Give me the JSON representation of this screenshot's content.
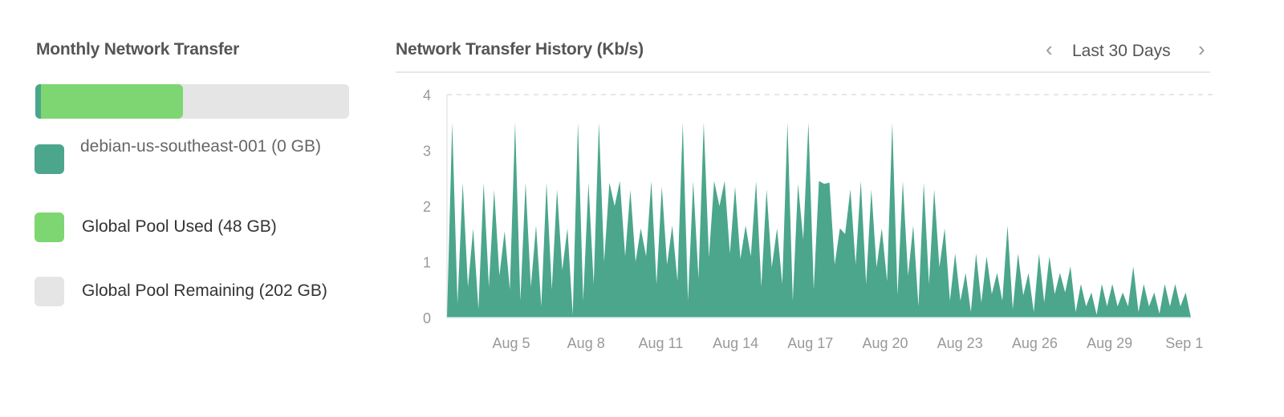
{
  "left": {
    "title": "Monthly Network Transfer",
    "bar_fill": {
      "debian": 0.018,
      "used": 0.47
    },
    "legend": [
      {
        "label": "debian-us-southeast-001 (0 GB)",
        "color": "#4ba68c"
      },
      {
        "label": "Global Pool Used (48 GB)",
        "color": "#7dd672"
      },
      {
        "label": "Global Pool Remaining (202 GB)",
        "color": "#e5e5e5"
      }
    ]
  },
  "right": {
    "title": "Network Transfer History (Kb/s)",
    "range_label": "Last 30 Days",
    "prev_icon": "chevron-left-icon",
    "next_icon": "chevron-right-icon"
  },
  "chart_data": {
    "type": "area",
    "title": "Network Transfer History (Kb/s)",
    "color": "#4ba68c",
    "ylim": [
      0,
      4
    ],
    "yticks": [
      0,
      1,
      2,
      3,
      4
    ],
    "xticks": [
      "Aug 5",
      "Aug 8",
      "Aug 11",
      "Aug 14",
      "Aug 17",
      "Aug 20",
      "Aug 23",
      "Aug 26",
      "Aug 29",
      "Sep 1"
    ],
    "grid": "dashed line at 4",
    "values": [
      0,
      3.5,
      0.25,
      2.42,
      0.55,
      1.6,
      0.15,
      2.42,
      0.55,
      2.29,
      0.75,
      1.55,
      0.5,
      3.5,
      0.3,
      2.42,
      0.55,
      1.65,
      0.2,
      2.42,
      0.5,
      2.3,
      0.85,
      1.6,
      0.05,
      3.5,
      0.3,
      2.42,
      0.6,
      3.5,
      1.0,
      2.42,
      2.0,
      2.45,
      1.1,
      2.29,
      1.0,
      1.6,
      1.1,
      2.45,
      0.6,
      2.35,
      0.95,
      1.65,
      0.65,
      3.5,
      0.3,
      2.45,
      0.7,
      3.5,
      1.08,
      2.45,
      2.0,
      2.45,
      1.15,
      2.35,
      1.05,
      1.65,
      1.1,
      2.45,
      0.55,
      2.3,
      0.9,
      1.6,
      0.6,
      3.5,
      0.3,
      2.4,
      1.4,
      3.5,
      0.5,
      2.45,
      2.4,
      2.42,
      0.95,
      1.6,
      1.5,
      2.3,
      0.95,
      2.45,
      0.6,
      2.3,
      0.9,
      1.6,
      0.65,
      3.5,
      0.4,
      2.45,
      0.75,
      1.65,
      0.2,
      2.42,
      0.6,
      2.3,
      0.9,
      1.6,
      0.3,
      1.15,
      0.3,
      0.8,
      0.1,
      1.15,
      0.27,
      1.1,
      0.42,
      0.8,
      0.3,
      1.65,
      0.15,
      1.15,
      0.4,
      0.8,
      0.1,
      1.15,
      0.27,
      1.1,
      0.42,
      0.8,
      0.45,
      0.92,
      0.1,
      0.6,
      0.2,
      0.45,
      0.05,
      0.6,
      0.2,
      0.6,
      0.2,
      0.45,
      0.2,
      0.92,
      0.1,
      0.6,
      0.2,
      0.45,
      0.07,
      0.6,
      0.2,
      0.6,
      0.2,
      0.45,
      0
    ]
  }
}
